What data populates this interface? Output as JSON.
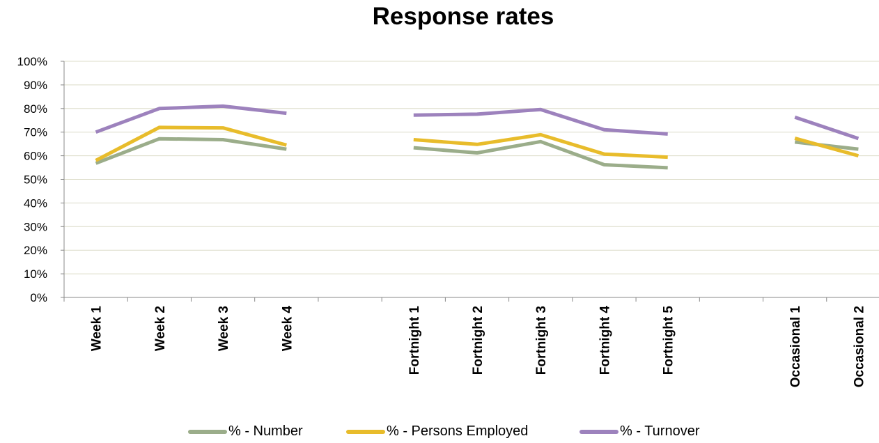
{
  "chart_data": {
    "type": "line",
    "title": "Response rates",
    "xlabel": "",
    "ylabel": "",
    "ylim": [
      0,
      100
    ],
    "y_ticks": [
      "0%",
      "10%",
      "20%",
      "30%",
      "40%",
      "50%",
      "60%",
      "70%",
      "80%",
      "90%",
      "100%"
    ],
    "categories": [
      "Week 1",
      "Week 2",
      "Week 3",
      "Week 4",
      "",
      "Fortnight 1",
      "Fortnight 2",
      "Fortnight 3",
      "Fortnight 4",
      "Fortnight 5",
      "",
      "Occasional 1",
      "Occasional 2"
    ],
    "series": [
      {
        "name": "% - Number",
        "color": "#9bad8a",
        "values": [
          56.8,
          67.2,
          66.8,
          62.8,
          null,
          63.4,
          61.2,
          66.0,
          56.2,
          54.9,
          null,
          65.8,
          62.8
        ]
      },
      {
        "name": "% - Persons Employed",
        "color": "#e8bc2b",
        "values": [
          58.0,
          72.0,
          71.8,
          64.5,
          null,
          66.8,
          64.8,
          68.9,
          60.7,
          59.4,
          null,
          67.4,
          60.0
        ]
      },
      {
        "name": "% - Turnover",
        "color": "#9d82bd",
        "values": [
          70.0,
          80.0,
          81.0,
          78.0,
          null,
          77.2,
          77.6,
          79.6,
          71.0,
          69.2,
          null,
          76.3,
          67.3
        ]
      }
    ],
    "grid": true,
    "legend_position": "bottom"
  }
}
